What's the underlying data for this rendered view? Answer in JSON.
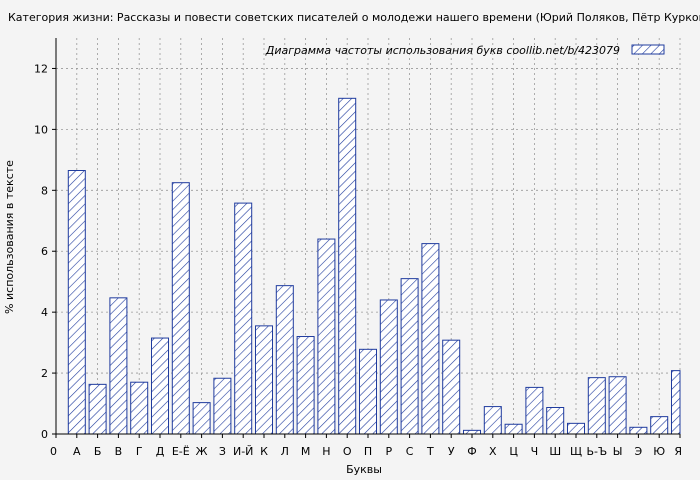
{
  "chart_data": {
    "type": "bar",
    "title": "Категория жизни: Рассказы и повести советских писателей о молодежи нашего времени (Юрий Поляков, Пётр Курков и др",
    "legend_label": "Диаграмма частоты использования букв  coollib.net/b/423079",
    "legend_position": "top-right",
    "xlabel": "Буквы",
    "ylabel": "% использования в тексте",
    "ylim": [
      0,
      13
    ],
    "yticks": [
      0,
      2,
      4,
      6,
      8,
      10,
      12
    ],
    "grid": true,
    "categories": [
      "0",
      "А",
      "Б",
      "В",
      "Г",
      "Д",
      "Е-Ё",
      "Ж",
      "З",
      "И-Й",
      "К",
      "Л",
      "М",
      "Н",
      "О",
      "П",
      "Р",
      "С",
      "Т",
      "У",
      "Ф",
      "Х",
      "Ц",
      "Ч",
      "Ш",
      "Щ",
      "Ь-Ъ",
      "Ы",
      "Э",
      "Ю",
      "Я"
    ],
    "values": [
      0,
      8.65,
      1.63,
      4.47,
      1.7,
      3.15,
      8.25,
      1.03,
      1.83,
      7.58,
      3.55,
      4.87,
      3.2,
      6.4,
      11.02,
      2.78,
      4.4,
      5.1,
      6.25,
      3.08,
      0.12,
      0.9,
      0.32,
      1.53,
      0.87,
      0.35,
      1.85,
      1.88,
      0.22,
      0.57,
      2.08
    ],
    "colors": {
      "bar_stroke": "#1f3b9e",
      "hatch": "#1f3b9e",
      "bar_fill": "#ffffff",
      "grid": "#999999",
      "plot_bg": "#f4f4f4"
    }
  }
}
